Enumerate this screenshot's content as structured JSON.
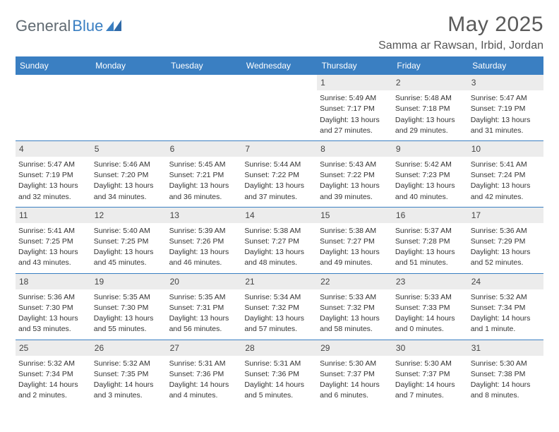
{
  "brand": {
    "part1": "General",
    "part2": "Blue"
  },
  "title": "May 2025",
  "location": "Samma ar Rawsan, Irbid, Jordan",
  "colors": {
    "accent": "#3a7fc2",
    "daynum_bg": "#ececec",
    "text": "#333333"
  },
  "dow": [
    "Sunday",
    "Monday",
    "Tuesday",
    "Wednesday",
    "Thursday",
    "Friday",
    "Saturday"
  ],
  "weeks": [
    [
      null,
      null,
      null,
      null,
      {
        "n": "1",
        "sr": "Sunrise: 5:49 AM",
        "ss": "Sunset: 7:17 PM",
        "d1": "Daylight: 13 hours",
        "d2": "and 27 minutes."
      },
      {
        "n": "2",
        "sr": "Sunrise: 5:48 AM",
        "ss": "Sunset: 7:18 PM",
        "d1": "Daylight: 13 hours",
        "d2": "and 29 minutes."
      },
      {
        "n": "3",
        "sr": "Sunrise: 5:47 AM",
        "ss": "Sunset: 7:19 PM",
        "d1": "Daylight: 13 hours",
        "d2": "and 31 minutes."
      }
    ],
    [
      {
        "n": "4",
        "sr": "Sunrise: 5:47 AM",
        "ss": "Sunset: 7:19 PM",
        "d1": "Daylight: 13 hours",
        "d2": "and 32 minutes."
      },
      {
        "n": "5",
        "sr": "Sunrise: 5:46 AM",
        "ss": "Sunset: 7:20 PM",
        "d1": "Daylight: 13 hours",
        "d2": "and 34 minutes."
      },
      {
        "n": "6",
        "sr": "Sunrise: 5:45 AM",
        "ss": "Sunset: 7:21 PM",
        "d1": "Daylight: 13 hours",
        "d2": "and 36 minutes."
      },
      {
        "n": "7",
        "sr": "Sunrise: 5:44 AM",
        "ss": "Sunset: 7:22 PM",
        "d1": "Daylight: 13 hours",
        "d2": "and 37 minutes."
      },
      {
        "n": "8",
        "sr": "Sunrise: 5:43 AM",
        "ss": "Sunset: 7:22 PM",
        "d1": "Daylight: 13 hours",
        "d2": "and 39 minutes."
      },
      {
        "n": "9",
        "sr": "Sunrise: 5:42 AM",
        "ss": "Sunset: 7:23 PM",
        "d1": "Daylight: 13 hours",
        "d2": "and 40 minutes."
      },
      {
        "n": "10",
        "sr": "Sunrise: 5:41 AM",
        "ss": "Sunset: 7:24 PM",
        "d1": "Daylight: 13 hours",
        "d2": "and 42 minutes."
      }
    ],
    [
      {
        "n": "11",
        "sr": "Sunrise: 5:41 AM",
        "ss": "Sunset: 7:25 PM",
        "d1": "Daylight: 13 hours",
        "d2": "and 43 minutes."
      },
      {
        "n": "12",
        "sr": "Sunrise: 5:40 AM",
        "ss": "Sunset: 7:25 PM",
        "d1": "Daylight: 13 hours",
        "d2": "and 45 minutes."
      },
      {
        "n": "13",
        "sr": "Sunrise: 5:39 AM",
        "ss": "Sunset: 7:26 PM",
        "d1": "Daylight: 13 hours",
        "d2": "and 46 minutes."
      },
      {
        "n": "14",
        "sr": "Sunrise: 5:38 AM",
        "ss": "Sunset: 7:27 PM",
        "d1": "Daylight: 13 hours",
        "d2": "and 48 minutes."
      },
      {
        "n": "15",
        "sr": "Sunrise: 5:38 AM",
        "ss": "Sunset: 7:27 PM",
        "d1": "Daylight: 13 hours",
        "d2": "and 49 minutes."
      },
      {
        "n": "16",
        "sr": "Sunrise: 5:37 AM",
        "ss": "Sunset: 7:28 PM",
        "d1": "Daylight: 13 hours",
        "d2": "and 51 minutes."
      },
      {
        "n": "17",
        "sr": "Sunrise: 5:36 AM",
        "ss": "Sunset: 7:29 PM",
        "d1": "Daylight: 13 hours",
        "d2": "and 52 minutes."
      }
    ],
    [
      {
        "n": "18",
        "sr": "Sunrise: 5:36 AM",
        "ss": "Sunset: 7:30 PM",
        "d1": "Daylight: 13 hours",
        "d2": "and 53 minutes."
      },
      {
        "n": "19",
        "sr": "Sunrise: 5:35 AM",
        "ss": "Sunset: 7:30 PM",
        "d1": "Daylight: 13 hours",
        "d2": "and 55 minutes."
      },
      {
        "n": "20",
        "sr": "Sunrise: 5:35 AM",
        "ss": "Sunset: 7:31 PM",
        "d1": "Daylight: 13 hours",
        "d2": "and 56 minutes."
      },
      {
        "n": "21",
        "sr": "Sunrise: 5:34 AM",
        "ss": "Sunset: 7:32 PM",
        "d1": "Daylight: 13 hours",
        "d2": "and 57 minutes."
      },
      {
        "n": "22",
        "sr": "Sunrise: 5:33 AM",
        "ss": "Sunset: 7:32 PM",
        "d1": "Daylight: 13 hours",
        "d2": "and 58 minutes."
      },
      {
        "n": "23",
        "sr": "Sunrise: 5:33 AM",
        "ss": "Sunset: 7:33 PM",
        "d1": "Daylight: 14 hours",
        "d2": "and 0 minutes."
      },
      {
        "n": "24",
        "sr": "Sunrise: 5:32 AM",
        "ss": "Sunset: 7:34 PM",
        "d1": "Daylight: 14 hours",
        "d2": "and 1 minute."
      }
    ],
    [
      {
        "n": "25",
        "sr": "Sunrise: 5:32 AM",
        "ss": "Sunset: 7:34 PM",
        "d1": "Daylight: 14 hours",
        "d2": "and 2 minutes."
      },
      {
        "n": "26",
        "sr": "Sunrise: 5:32 AM",
        "ss": "Sunset: 7:35 PM",
        "d1": "Daylight: 14 hours",
        "d2": "and 3 minutes."
      },
      {
        "n": "27",
        "sr": "Sunrise: 5:31 AM",
        "ss": "Sunset: 7:36 PM",
        "d1": "Daylight: 14 hours",
        "d2": "and 4 minutes."
      },
      {
        "n": "28",
        "sr": "Sunrise: 5:31 AM",
        "ss": "Sunset: 7:36 PM",
        "d1": "Daylight: 14 hours",
        "d2": "and 5 minutes."
      },
      {
        "n": "29",
        "sr": "Sunrise: 5:30 AM",
        "ss": "Sunset: 7:37 PM",
        "d1": "Daylight: 14 hours",
        "d2": "and 6 minutes."
      },
      {
        "n": "30",
        "sr": "Sunrise: 5:30 AM",
        "ss": "Sunset: 7:37 PM",
        "d1": "Daylight: 14 hours",
        "d2": "and 7 minutes."
      },
      {
        "n": "31",
        "sr": "Sunrise: 5:30 AM",
        "ss": "Sunset: 7:38 PM",
        "d1": "Daylight: 14 hours",
        "d2": "and 8 minutes."
      }
    ]
  ]
}
